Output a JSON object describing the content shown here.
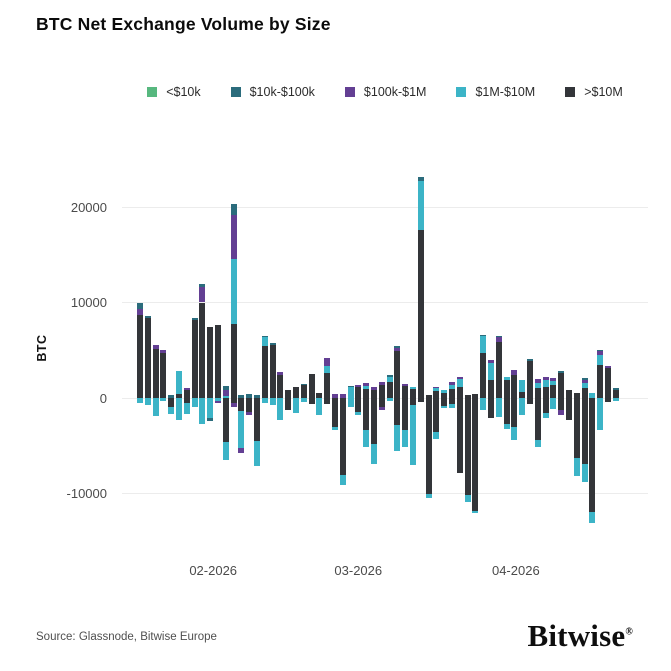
{
  "header": {
    "title": "BTC Net Exchange Volume by Size"
  },
  "footer": {
    "source": "Source: Glassnode, Bitwise Europe",
    "logo_text": "Bitwise",
    "logo_mark": "®"
  },
  "chart_data": {
    "type": "bar",
    "stacked": true,
    "title": "BTC Net Exchange Volume by Size",
    "ylabel": "BTC",
    "xlabel": "",
    "grid": "horizontal-only",
    "legend_position": "top-center",
    "ylim": [
      -14500,
      23900
    ],
    "yticks": [
      {
        "value": 20000,
        "label": "20000"
      },
      {
        "value": 10000,
        "label": "10000"
      },
      {
        "value": 0,
        "label": "0"
      },
      {
        "value": -10000,
        "label": "-10000"
      }
    ],
    "xticks": [
      {
        "label": "02-2026",
        "bar_index": 9.0
      },
      {
        "label": "03-2026",
        "bar_index": 27.6
      },
      {
        "label": "04-2026",
        "bar_index": 47.8
      }
    ],
    "series_legend": [
      {
        "name": "<$10k",
        "color": "#57b87f"
      },
      {
        "name": "$10k-$100k",
        "color": "#2b6c7c"
      },
      {
        "name": "$100k-$1M",
        "color": "#633f93"
      },
      {
        "name": "$1M-$10M",
        "color": "#3cb4c7"
      },
      {
        "name": ">$10M",
        "color": "#333539"
      }
    ],
    "segment_value_order": [
      "<$10k",
      "$10k-$100k",
      "$100k-$1M",
      "$1M-$10M",
      ">$10M"
    ],
    "stacking_note": "Segments stack outward from zero in order >$10M, $1M-$10M, $100k-$1M, $10k-$100k, <$10k. Values in BTC.",
    "bars": [
      {
        "pos": [
          0,
          600,
          600,
          0,
          8700
        ],
        "neg": [
          0,
          0,
          0,
          500,
          0
        ]
      },
      {
        "pos": [
          0,
          200,
          0,
          0,
          8400
        ],
        "neg": [
          0,
          0,
          0,
          700,
          0
        ]
      },
      {
        "pos": [
          0,
          0,
          500,
          0,
          5100
        ],
        "neg": [
          0,
          0,
          0,
          1900,
          0
        ]
      },
      {
        "pos": [
          0,
          0,
          350,
          0,
          4700
        ],
        "neg": [
          0,
          0,
          0,
          300,
          0
        ]
      },
      {
        "pos": [
          0,
          300,
          0,
          0,
          0
        ],
        "neg": [
          0,
          0,
          0,
          800,
          900
        ]
      },
      {
        "pos": [
          0,
          0,
          0,
          2400,
          400
        ],
        "neg": [
          0,
          0,
          0,
          2300,
          0
        ]
      },
      {
        "pos": [
          0,
          0,
          200,
          0,
          800
        ],
        "neg": [
          0,
          0,
          0,
          1200,
          500
        ]
      },
      {
        "pos": [
          0,
          200,
          0,
          0,
          8200
        ],
        "neg": [
          0,
          0,
          0,
          900,
          0
        ]
      },
      {
        "pos": [
          0,
          300,
          1600,
          0,
          10000
        ],
        "neg": [
          0,
          0,
          0,
          2700,
          0
        ]
      },
      {
        "pos": [
          0,
          0,
          0,
          0,
          7400
        ],
        "neg": [
          0,
          300,
          0,
          2100,
          0
        ]
      },
      {
        "pos": [
          0,
          0,
          0,
          0,
          7600
        ],
        "neg": [
          0,
          0,
          200,
          300,
          0
        ]
      },
      {
        "pos": [
          0,
          400,
          660,
          200,
          0
        ],
        "neg": [
          0,
          0,
          0,
          1900,
          4600
        ]
      },
      {
        "pos": [
          0,
          1100,
          4600,
          6900,
          7700
        ],
        "neg": [
          0,
          0,
          340,
          0,
          560
        ]
      },
      {
        "pos": [
          0,
          300,
          0,
          0,
          0
        ],
        "neg": [
          0,
          0,
          500,
          3850,
          1400
        ]
      },
      {
        "pos": [
          0,
          400,
          0,
          0,
          0
        ],
        "neg": [
          0,
          0,
          300,
          0,
          1500
        ]
      },
      {
        "pos": [
          0,
          300,
          0,
          0,
          0
        ],
        "neg": [
          0,
          0,
          0,
          2600,
          4500
        ]
      },
      {
        "pos": [
          0,
          100,
          0,
          1000,
          5400
        ],
        "neg": [
          0,
          0,
          0,
          500,
          0
        ]
      },
      {
        "pos": [
          0,
          200,
          0,
          0,
          5600
        ],
        "neg": [
          0,
          0,
          0,
          700,
          0
        ]
      },
      {
        "pos": [
          0,
          0,
          350,
          0,
          2400
        ],
        "neg": [
          0,
          0,
          0,
          2300,
          0
        ]
      },
      {
        "pos": [
          0,
          0,
          0,
          0,
          800
        ],
        "neg": [
          0,
          0,
          0,
          0,
          1300
        ]
      },
      {
        "pos": [
          0,
          0,
          0,
          0,
          1100
        ],
        "neg": [
          0,
          0,
          0,
          1600,
          0
        ]
      },
      {
        "pos": [
          0,
          100,
          0,
          0,
          1400
        ],
        "neg": [
          0,
          0,
          0,
          400,
          0
        ]
      },
      {
        "pos": [
          0,
          0,
          0,
          0,
          2500
        ],
        "neg": [
          0,
          0,
          0,
          0,
          600
        ]
      },
      {
        "pos": [
          0,
          0,
          0,
          0,
          500
        ],
        "neg": [
          0,
          0,
          0,
          1800,
          0
        ]
      },
      {
        "pos": [
          0,
          0,
          900,
          700,
          2600
        ],
        "neg": [
          0,
          0,
          0,
          0,
          600
        ]
      },
      {
        "pos": [
          0,
          0,
          400,
          0,
          0
        ],
        "neg": [
          0,
          0,
          0,
          400,
          3000
        ]
      },
      {
        "pos": [
          0,
          0,
          400,
          0,
          0
        ],
        "neg": [
          0,
          0,
          0,
          1000,
          8100
        ]
      },
      {
        "pos": [
          0,
          200,
          0,
          1100,
          0
        ],
        "neg": [
          0,
          0,
          0,
          900,
          0
        ]
      },
      {
        "pos": [
          0,
          0,
          200,
          0,
          1200
        ],
        "neg": [
          0,
          0,
          0,
          250,
          1500
        ]
      },
      {
        "pos": [
          0,
          0,
          250,
          400,
          900
        ],
        "neg": [
          0,
          0,
          0,
          1750,
          3400
        ]
      },
      {
        "pos": [
          0,
          0,
          300,
          0,
          800
        ],
        "neg": [
          0,
          0,
          0,
          2100,
          4800
        ]
      },
      {
        "pos": [
          0,
          0,
          300,
          0,
          1400
        ],
        "neg": [
          0,
          0,
          350,
          0,
          900
        ]
      },
      {
        "pos": [
          0,
          250,
          0,
          500,
          1700
        ],
        "neg": [
          0,
          0,
          0,
          300,
          0
        ]
      },
      {
        "pos": [
          0,
          200,
          300,
          0,
          4900
        ],
        "neg": [
          0,
          0,
          0,
          2800,
          2800
        ]
      },
      {
        "pos": [
          0,
          0,
          200,
          0,
          1300
        ],
        "neg": [
          0,
          0,
          0,
          1800,
          3300
        ]
      },
      {
        "pos": [
          0,
          0,
          0,
          300,
          900
        ],
        "neg": [
          0,
          0,
          0,
          6300,
          700
        ]
      },
      {
        "pos": [
          0,
          450,
          0,
          5100,
          17600
        ],
        "neg": [
          0,
          0,
          0,
          0,
          400
        ]
      },
      {
        "pos": [
          0,
          0,
          0,
          0,
          300
        ],
        "neg": [
          0,
          0,
          0,
          500,
          10000
        ]
      },
      {
        "pos": [
          0,
          0,
          200,
          300,
          700
        ],
        "neg": [
          0,
          0,
          0,
          700,
          3600
        ]
      },
      {
        "pos": [
          0,
          0,
          0,
          300,
          500
        ],
        "neg": [
          0,
          0,
          0,
          300,
          800
        ]
      },
      {
        "pos": [
          0,
          0,
          250,
          500,
          900
        ],
        "neg": [
          0,
          0,
          0,
          400,
          600
        ]
      },
      {
        "pos": [
          0,
          0,
          200,
          800,
          1200
        ],
        "neg": [
          0,
          0,
          0,
          0,
          7900
        ]
      },
      {
        "pos": [
          0,
          0,
          0,
          0,
          300
        ],
        "neg": [
          0,
          0,
          0,
          700,
          10200
        ]
      },
      {
        "pos": [
          0,
          0,
          0,
          0,
          400
        ],
        "neg": [
          0,
          0,
          0,
          200,
          11800
        ]
      },
      {
        "pos": [
          0,
          100,
          0,
          1800,
          4700
        ],
        "neg": [
          0,
          0,
          0,
          1300,
          0
        ]
      },
      {
        "pos": [
          0,
          0,
          350,
          1750,
          1900
        ],
        "neg": [
          0,
          0,
          0,
          0,
          2100
        ]
      },
      {
        "pos": [
          0,
          100,
          450,
          0,
          5900
        ],
        "neg": [
          0,
          0,
          0,
          2000,
          0
        ]
      },
      {
        "pos": [
          0,
          0,
          0,
          350,
          1900
        ],
        "neg": [
          0,
          0,
          0,
          500,
          2700
        ]
      },
      {
        "pos": [
          0,
          0,
          500,
          0,
          2400
        ],
        "neg": [
          0,
          0,
          0,
          1400,
          3000
        ]
      },
      {
        "pos": [
          0,
          0,
          0,
          1300,
          600
        ],
        "neg": [
          0,
          0,
          0,
          1800,
          0
        ]
      },
      {
        "pos": [
          0,
          150,
          0,
          0,
          3900
        ],
        "neg": [
          0,
          0,
          0,
          0,
          600
        ]
      },
      {
        "pos": [
          0,
          0,
          350,
          600,
          1000
        ],
        "neg": [
          0,
          0,
          0,
          700,
          4400
        ]
      },
      {
        "pos": [
          0,
          0,
          350,
          700,
          1200
        ],
        "neg": [
          0,
          0,
          0,
          500,
          1600
        ]
      },
      {
        "pos": [
          0,
          0,
          300,
          400,
          1400
        ],
        "neg": [
          0,
          0,
          0,
          1100,
          0
        ]
      },
      {
        "pos": [
          0,
          250,
          0,
          0,
          2600
        ],
        "neg": [
          0,
          0,
          500,
          0,
          1300
        ]
      },
      {
        "pos": [
          0,
          0,
          0,
          0,
          850
        ],
        "neg": [
          0,
          0,
          0,
          0,
          2300
        ]
      },
      {
        "pos": [
          0,
          0,
          0,
          0,
          500
        ],
        "neg": [
          0,
          0,
          0,
          1900,
          6300
        ]
      },
      {
        "pos": [
          0,
          150,
          350,
          550,
          1000
        ],
        "neg": [
          0,
          0,
          0,
          1900,
          6900
        ]
      },
      {
        "pos": [
          0,
          0,
          0,
          500,
          0
        ],
        "neg": [
          0,
          0,
          0,
          1200,
          11900
        ]
      },
      {
        "pos": [
          0,
          150,
          400,
          1000,
          3500
        ],
        "neg": [
          0,
          0,
          0,
          3400,
          0
        ]
      },
      {
        "pos": [
          0,
          0,
          200,
          0,
          3100
        ],
        "neg": [
          0,
          0,
          0,
          0,
          400
        ]
      },
      {
        "pos": [
          0,
          200,
          0,
          0,
          800
        ],
        "neg": [
          0,
          0,
          0,
          300,
          0
        ]
      }
    ]
  }
}
